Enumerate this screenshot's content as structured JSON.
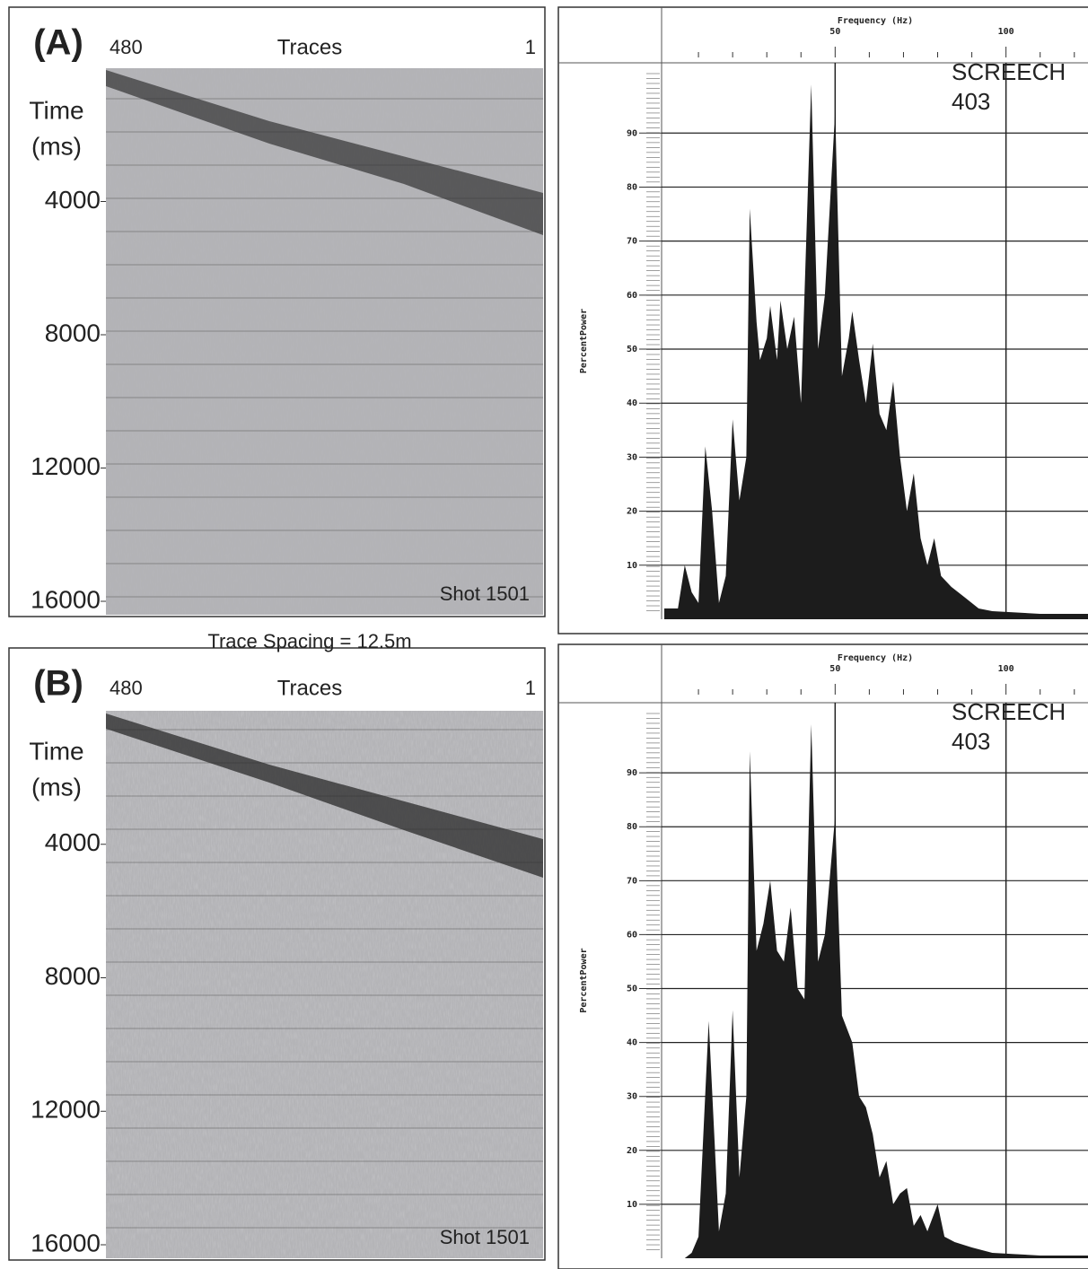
{
  "seismic_panels": [
    {
      "label": "(A)",
      "trace_left": "480",
      "axis_title": "Traces",
      "trace_right": "1",
      "time_label": [
        "Time",
        "(ms)"
      ],
      "ylim": [
        0,
        16000
      ],
      "yticks": [
        4000,
        8000,
        12000,
        16000
      ],
      "shot": "Shot 1501"
    },
    {
      "label": "(B)",
      "trace_left": "480",
      "axis_title": "Traces",
      "trace_right": "1",
      "time_label": [
        "Time",
        "(ms)"
      ],
      "ylim": [
        0,
        16000
      ],
      "yticks": [
        4000,
        8000,
        12000,
        16000
      ],
      "shot": "Shot 1501"
    }
  ],
  "trace_spacing": "Trace Spacing = 12.5m",
  "chart_data": [
    {
      "type": "area",
      "xlabel": "Frequency (Hz)",
      "ylabel": "PercentPower",
      "annotation": [
        "SCREECH",
        "403"
      ],
      "xlim": [
        0,
        124
      ],
      "xticks": [
        50,
        100
      ],
      "xminor_ticks": [
        10,
        20,
        30,
        40,
        60,
        70,
        80,
        90,
        110,
        120
      ],
      "ylim": [
        0,
        103
      ],
      "yticks": [
        10,
        20,
        30,
        40,
        50,
        60,
        70,
        80,
        90
      ],
      "grid": true,
      "color": "#1c1c1c",
      "x": [
        0,
        4,
        6,
        8,
        10,
        12,
        14,
        16,
        18,
        20,
        22,
        24,
        25,
        27,
        28,
        30,
        31,
        33,
        34,
        36,
        38,
        40,
        43,
        45,
        47,
        50,
        52,
        54,
        55,
        57,
        59,
        61,
        63,
        65,
        67,
        69,
        71,
        73,
        75,
        77,
        79,
        81,
        84,
        88,
        92,
        96,
        110,
        124
      ],
      "values": [
        2,
        2,
        10,
        5,
        3,
        32,
        20,
        3,
        8,
        37,
        22,
        30,
        76,
        55,
        48,
        52,
        58,
        48,
        59,
        50,
        56,
        40,
        99,
        50,
        60,
        94,
        45,
        52,
        57,
        48,
        40,
        51,
        38,
        35,
        44,
        30,
        20,
        27,
        15,
        10,
        15,
        8,
        6,
        4,
        2,
        1.5,
        1,
        1
      ]
    },
    {
      "type": "area",
      "xlabel": "Frequency (Hz)",
      "ylabel": "PercentPower",
      "annotation": [
        "SCREECH",
        "403"
      ],
      "xlim": [
        0,
        124
      ],
      "xticks": [
        50,
        100
      ],
      "xminor_ticks": [
        10,
        20,
        30,
        40,
        60,
        70,
        80,
        90,
        110,
        120
      ],
      "ylim": [
        0,
        103
      ],
      "yticks": [
        10,
        20,
        30,
        40,
        50,
        60,
        70,
        80,
        90
      ],
      "grid": true,
      "color": "#1c1c1c",
      "x": [
        0,
        6,
        8,
        10,
        13,
        16,
        18,
        20,
        22,
        24,
        25,
        27,
        29,
        31,
        33,
        35,
        37,
        39,
        41,
        43,
        45,
        47,
        50,
        52,
        55,
        57,
        59,
        61,
        63,
        65,
        67,
        69,
        71,
        73,
        75,
        77,
        80,
        82,
        85,
        90,
        96,
        110,
        124
      ],
      "values": [
        0,
        0,
        1,
        4,
        44,
        5,
        12,
        46,
        15,
        30,
        94,
        57,
        62,
        70,
        57,
        55,
        65,
        50,
        48,
        99,
        55,
        60,
        82,
        45,
        40,
        30,
        28,
        23,
        15,
        18,
        10,
        12,
        13,
        6,
        8,
        5,
        10,
        4,
        3,
        2,
        1,
        0.5,
        0.5
      ]
    }
  ]
}
